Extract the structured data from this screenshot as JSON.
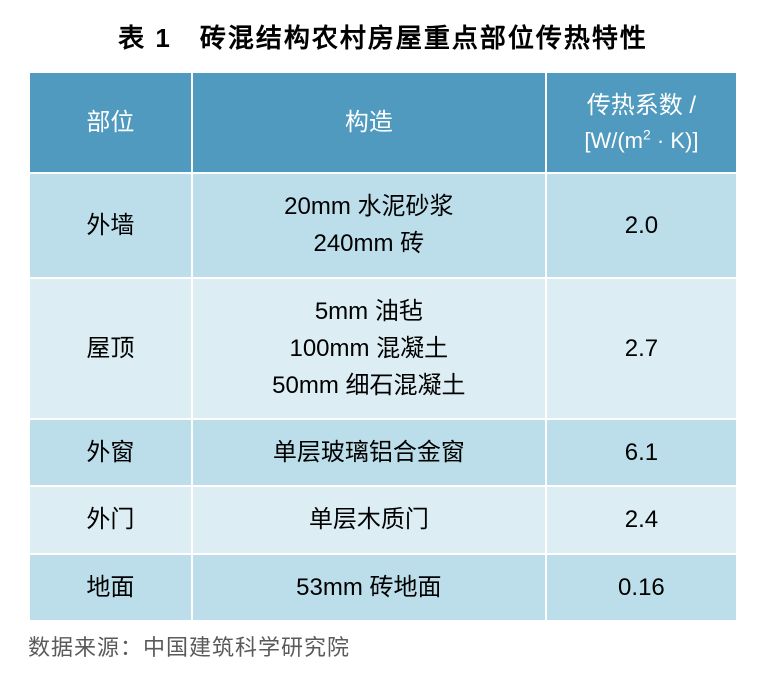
{
  "title": "表 1　砖混结构农村房屋重点部位传热特性",
  "columns": {
    "part": "部位",
    "construction": "构造",
    "coef_label": "传热系数 /",
    "coef_unit_prefix": "[W/(m",
    "coef_unit_sup": "2",
    "coef_unit_suffix": " · K)]"
  },
  "rows": [
    {
      "part": "外墙",
      "construction": [
        "20mm 水泥砂浆",
        "240mm 砖"
      ],
      "coef": "2.0"
    },
    {
      "part": "屋顶",
      "construction": [
        "5mm 油毡",
        "100mm 混凝土",
        "50mm 细石混凝土"
      ],
      "coef": "2.7"
    },
    {
      "part": "外窗",
      "construction": [
        "单层玻璃铝合金窗"
      ],
      "coef": "6.1"
    },
    {
      "part": "外门",
      "construction": [
        "单层木质门"
      ],
      "coef": "2.4"
    },
    {
      "part": "地面",
      "construction": [
        "53mm 砖地面"
      ],
      "coef": "0.16"
    }
  ],
  "source": "数据来源：中国建筑科学研究院",
  "style": {
    "header_bg": "#4f9abe",
    "row_even_bg": "#bcdeea",
    "row_odd_bg": "#dceef4",
    "border_color": "#ffffff",
    "caption_color": "#5a5a5a",
    "title_fontsize": 26,
    "cell_fontsize": 24,
    "source_fontsize": 22,
    "col_widths_pct": [
      23,
      50,
      27
    ]
  }
}
